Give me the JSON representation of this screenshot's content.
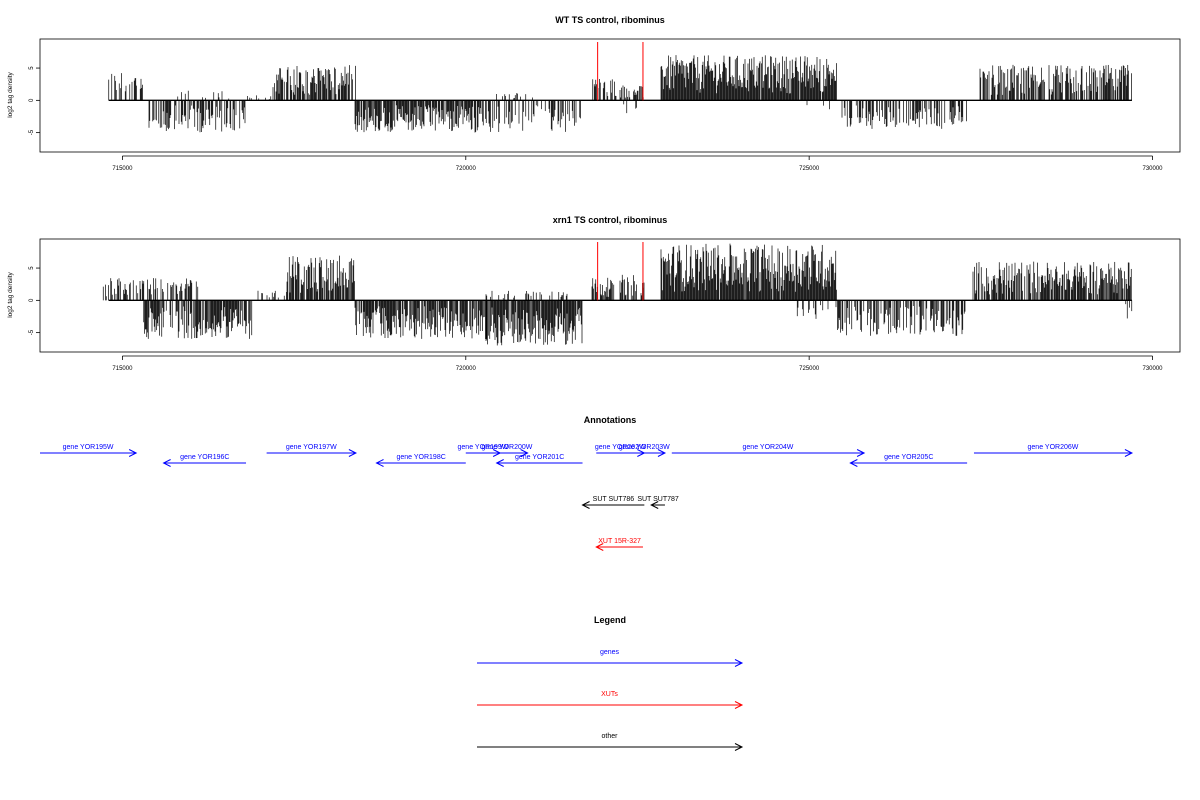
{
  "chart_data": [
    {
      "type": "bar",
      "title": "WT TS control, ribominus",
      "ylabel": "log2 tag density",
      "xlabel": "",
      "xlim": [
        713800,
        730400
      ],
      "ylim": [
        -8,
        9.5
      ],
      "xticks": [
        "715000",
        "720000",
        "725000",
        "730000"
      ],
      "yticks": [
        "-5",
        "0",
        "5"
      ],
      "xtick_values": [
        715000,
        720000,
        725000,
        730000
      ],
      "ytick_values": [
        -5,
        0,
        5
      ],
      "grid": false,
      "highlight_lines": [
        {
          "x": 721920,
          "color": "#ff0000"
        },
        {
          "x": 722580,
          "color": "#ff0000"
        }
      ],
      "bar_color": "#000000",
      "segments": [
        {
          "x": [
            714800,
            715300
          ],
          "sign": 1,
          "max": 4.5,
          "density": 0.4
        },
        {
          "x": [
            715400,
            716800
          ],
          "sign": -1,
          "max": 5.0,
          "density": 0.6
        },
        {
          "x": [
            715800,
            716600
          ],
          "sign": 1,
          "max": 1.5,
          "density": 0.15
        },
        {
          "x": [
            716800,
            717200
          ],
          "sign": 1,
          "max": 1.0,
          "density": 0.1
        },
        {
          "x": [
            717200,
            718400
          ],
          "sign": 1,
          "max": 5.5,
          "density": 0.8
        },
        {
          "x": [
            718400,
            720300
          ],
          "sign": -1,
          "max": 5.0,
          "density": 0.85
        },
        {
          "x": [
            720300,
            721700
          ],
          "sign": -1,
          "max": 5.0,
          "density": 0.45
        },
        {
          "x": [
            720300,
            721000
          ],
          "sign": 1,
          "max": 1.5,
          "density": 0.15
        },
        {
          "x": [
            721850,
            722200
          ],
          "sign": 1,
          "max": 3.5,
          "density": 0.6
        },
        {
          "x": [
            722250,
            722600
          ],
          "sign": 1,
          "max": 2.5,
          "density": 0.5
        },
        {
          "x": [
            722250,
            722500
          ],
          "sign": -1,
          "max": 2.0,
          "density": 0.2
        },
        {
          "x": [
            722850,
            725400
          ],
          "sign": 1,
          "max": 7.0,
          "density": 0.97
        },
        {
          "x": [
            724800,
            725300
          ],
          "sign": -1,
          "max": 3.0,
          "density": 0.15
        },
        {
          "x": [
            725400,
            727300
          ],
          "sign": -1,
          "max": 4.5,
          "density": 0.45
        },
        {
          "x": [
            727500,
            729700
          ],
          "sign": 1,
          "max": 5.5,
          "density": 0.75
        }
      ]
    },
    {
      "type": "bar",
      "title": "xrn1 TS control, ribominus",
      "ylabel": "log2 tag density",
      "xlabel": "",
      "xlim": [
        713800,
        730400
      ],
      "ylim": [
        -8,
        9.5
      ],
      "xticks": [
        "715000",
        "720000",
        "725000",
        "730000"
      ],
      "yticks": [
        "-5",
        "0",
        "5"
      ],
      "xtick_values": [
        715000,
        720000,
        725000,
        730000
      ],
      "ytick_values": [
        -5,
        0,
        5
      ],
      "grid": false,
      "highlight_lines": [
        {
          "x": 721920,
          "color": "#ff0000"
        },
        {
          "x": 722580,
          "color": "#ff0000"
        }
      ],
      "bar_color": "#000000",
      "segments": [
        {
          "x": [
            714700,
            716100
          ],
          "sign": 1,
          "max": 3.5,
          "density": 0.5
        },
        {
          "x": [
            715300,
            716900
          ],
          "sign": -1,
          "max": 6.0,
          "density": 0.8
        },
        {
          "x": [
            716900,
            717400
          ],
          "sign": 1,
          "max": 1.5,
          "density": 0.2
        },
        {
          "x": [
            717400,
            718400
          ],
          "sign": 1,
          "max": 7.0,
          "density": 0.9
        },
        {
          "x": [
            718400,
            720300
          ],
          "sign": -1,
          "max": 6.0,
          "density": 0.85
        },
        {
          "x": [
            720300,
            721700
          ],
          "sign": -1,
          "max": 7.0,
          "density": 0.95
        },
        {
          "x": [
            720300,
            721500
          ],
          "sign": 1,
          "max": 1.5,
          "density": 0.2
        },
        {
          "x": [
            721850,
            722200
          ],
          "sign": 1,
          "max": 3.5,
          "density": 0.7
        },
        {
          "x": [
            722250,
            722600
          ],
          "sign": 1,
          "max": 4.0,
          "density": 0.6
        },
        {
          "x": [
            722850,
            725400
          ],
          "sign": 1,
          "max": 8.8,
          "density": 0.98
        },
        {
          "x": [
            724800,
            725300
          ],
          "sign": -1,
          "max": 3.0,
          "density": 0.2
        },
        {
          "x": [
            725400,
            727300
          ],
          "sign": -1,
          "max": 5.5,
          "density": 0.6
        },
        {
          "x": [
            727400,
            729700
          ],
          "sign": 1,
          "max": 6.0,
          "density": 0.8
        },
        {
          "x": [
            729600,
            729700
          ],
          "sign": -1,
          "max": 3.5,
          "density": 0.5
        }
      ]
    }
  ],
  "annotations": {
    "title": "Annotations",
    "xlim": [
      713800,
      730400
    ],
    "features": [
      {
        "label": "gene YOR195W",
        "start": 713800,
        "end": 715200,
        "strand": "+",
        "row": 0,
        "color": "#0000ff"
      },
      {
        "label": "gene YOR196C",
        "start": 715600,
        "end": 716800,
        "strand": "-",
        "row": 1,
        "color": "#0000ff"
      },
      {
        "label": "gene YOR197W",
        "start": 717100,
        "end": 718400,
        "strand": "+",
        "row": 0,
        "color": "#0000ff"
      },
      {
        "label": "gene YOR198C",
        "start": 718700,
        "end": 720000,
        "strand": "-",
        "row": 1,
        "color": "#0000ff"
      },
      {
        "label": "gene YOR199W",
        "start": 720000,
        "end": 720500,
        "strand": "+",
        "row": 0,
        "color": "#0000ff"
      },
      {
        "label": "gene YOR200W",
        "start": 720300,
        "end": 720900,
        "strand": "+",
        "row": 0,
        "color": "#0000ff"
      },
      {
        "label": "gene YOR201C",
        "start": 720450,
        "end": 721700,
        "strand": "-",
        "row": 1,
        "color": "#0000ff"
      },
      {
        "label": "gene YOR202W",
        "start": 721900,
        "end": 722600,
        "strand": "+",
        "row": 0,
        "color": "#0000ff"
      },
      {
        "label": "gene YOR203W",
        "start": 722300,
        "end": 722900,
        "strand": "+",
        "row": 0,
        "color": "#0000ff"
      },
      {
        "label": "gene YOR204W",
        "start": 723000,
        "end": 725800,
        "strand": "+",
        "row": 0,
        "color": "#0000ff"
      },
      {
        "label": "gene YOR205C",
        "start": 725600,
        "end": 727300,
        "strand": "-",
        "row": 1,
        "color": "#0000ff"
      },
      {
        "label": "gene YOR206W",
        "start": 727400,
        "end": 729700,
        "strand": "+",
        "row": 0,
        "color": "#0000ff"
      },
      {
        "label": "SUT SUT786",
        "start": 721700,
        "end": 722600,
        "strand": "-",
        "row": 2,
        "color": "#000000"
      },
      {
        "label": "SUT SUT787",
        "start": 722700,
        "end": 722900,
        "strand": "-",
        "row": 2,
        "color": "#000000"
      },
      {
        "label": "XUT 15R-327",
        "start": 721900,
        "end": 722580,
        "strand": "-",
        "row": 3,
        "color": "#ff0000"
      }
    ]
  },
  "legend": {
    "title": "Legend",
    "items": [
      {
        "label": "genes",
        "color": "#0000ff"
      },
      {
        "label": "XUTs",
        "color": "#ff0000"
      },
      {
        "label": "other",
        "color": "#000000"
      }
    ]
  }
}
